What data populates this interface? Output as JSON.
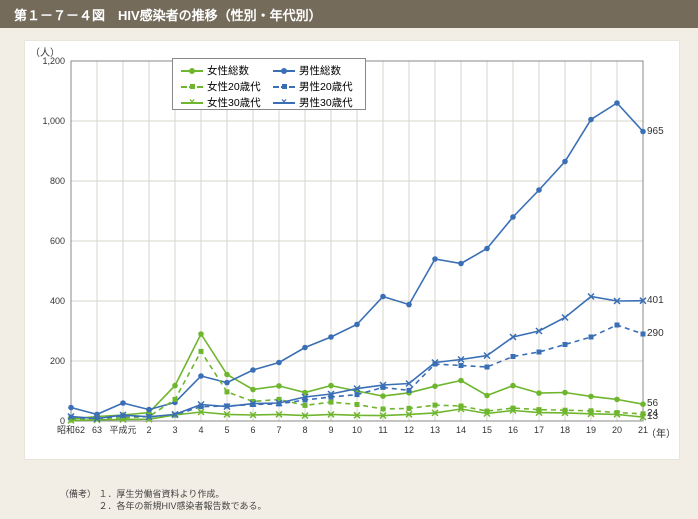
{
  "title": "第１－７－４図　HIV感染者の推移（性別・年代別）",
  "y_axis_label": "（人）",
  "x_axis_label": "（年）",
  "footnote_label": "（備考）",
  "footnote_lines": [
    "１．厚生労働省資料より作成。",
    "２．各年の新規HIV感染者報告数である。"
  ],
  "chart": {
    "type": "line",
    "ylim": [
      0,
      1200
    ],
    "ytick_step": 200,
    "x_categories": [
      "昭和62",
      "63",
      "平成元",
      "2",
      "3",
      "4",
      "5",
      "6",
      "7",
      "8",
      "9",
      "10",
      "11",
      "12",
      "13",
      "14",
      "15",
      "16",
      "17",
      "18",
      "19",
      "20",
      "21"
    ],
    "background_color": "#ffffff",
    "grid_color": "#d9d4c8",
    "axis_color": "#888888",
    "label_fontsize": 9,
    "colors": {
      "female": "#6fb62f",
      "male": "#3a6fb5"
    },
    "line_width": 1.6,
    "series": [
      {
        "key": "f_total",
        "label": "女性総数",
        "color": "female",
        "dash": "solid",
        "marker": "circle",
        "values": [
          7,
          15,
          20,
          28,
          118,
          290,
          155,
          105,
          117,
          95,
          118,
          100,
          83,
          94,
          116,
          135,
          85,
          118,
          93,
          95,
          82,
          72,
          56
        ]
      },
      {
        "key": "m_total",
        "label": "男性総数",
        "color": "male",
        "dash": "solid",
        "marker": "circle",
        "values": [
          45,
          22,
          60,
          38,
          62,
          150,
          128,
          170,
          195,
          245,
          280,
          322,
          415,
          388,
          540,
          525,
          575,
          680,
          770,
          865,
          1005,
          1060,
          965
        ]
      },
      {
        "key": "f_20s",
        "label": "女性20歳代",
        "color": "female",
        "dash": "dashed",
        "marker": "square",
        "values": [
          3,
          9,
          10,
          15,
          72,
          232,
          97,
          65,
          72,
          52,
          63,
          55,
          40,
          42,
          53,
          50,
          33,
          43,
          38,
          36,
          34,
          28,
          24
        ]
      },
      {
        "key": "m_20s",
        "label": "男性20歳代",
        "color": "male",
        "dash": "dashed",
        "marker": "square",
        "values": [
          12,
          8,
          17,
          14,
          20,
          48,
          50,
          55,
          57,
          70,
          80,
          88,
          112,
          102,
          190,
          185,
          180,
          215,
          230,
          255,
          280,
          320,
          290
        ]
      },
      {
        "key": "f_30s",
        "label": "女性30歳代",
        "color": "female",
        "dash": "solid",
        "marker": "x",
        "values": [
          2,
          4,
          5,
          6,
          20,
          30,
          22,
          20,
          22,
          18,
          22,
          19,
          18,
          22,
          27,
          40,
          25,
          35,
          28,
          27,
          24,
          22,
          13
        ]
      },
      {
        "key": "m_30s",
        "label": "男性30歳代",
        "color": "male",
        "dash": "solid",
        "marker": "x",
        "values": [
          15,
          8,
          20,
          14,
          22,
          55,
          48,
          58,
          60,
          80,
          90,
          108,
          120,
          125,
          195,
          205,
          218,
          280,
          300,
          345,
          415,
          400,
          401
        ]
      }
    ],
    "end_labels": [
      {
        "value": "965",
        "y": 965,
        "color": "male"
      },
      {
        "value": "401",
        "y": 401,
        "color": "male"
      },
      {
        "value": "290",
        "y": 290,
        "color": "male"
      },
      {
        "value": "56",
        "y": 56,
        "color": "female"
      },
      {
        "value": "24",
        "y": 24,
        "color": "female"
      },
      {
        "value": "13",
        "y": 13,
        "color": "female"
      }
    ]
  }
}
